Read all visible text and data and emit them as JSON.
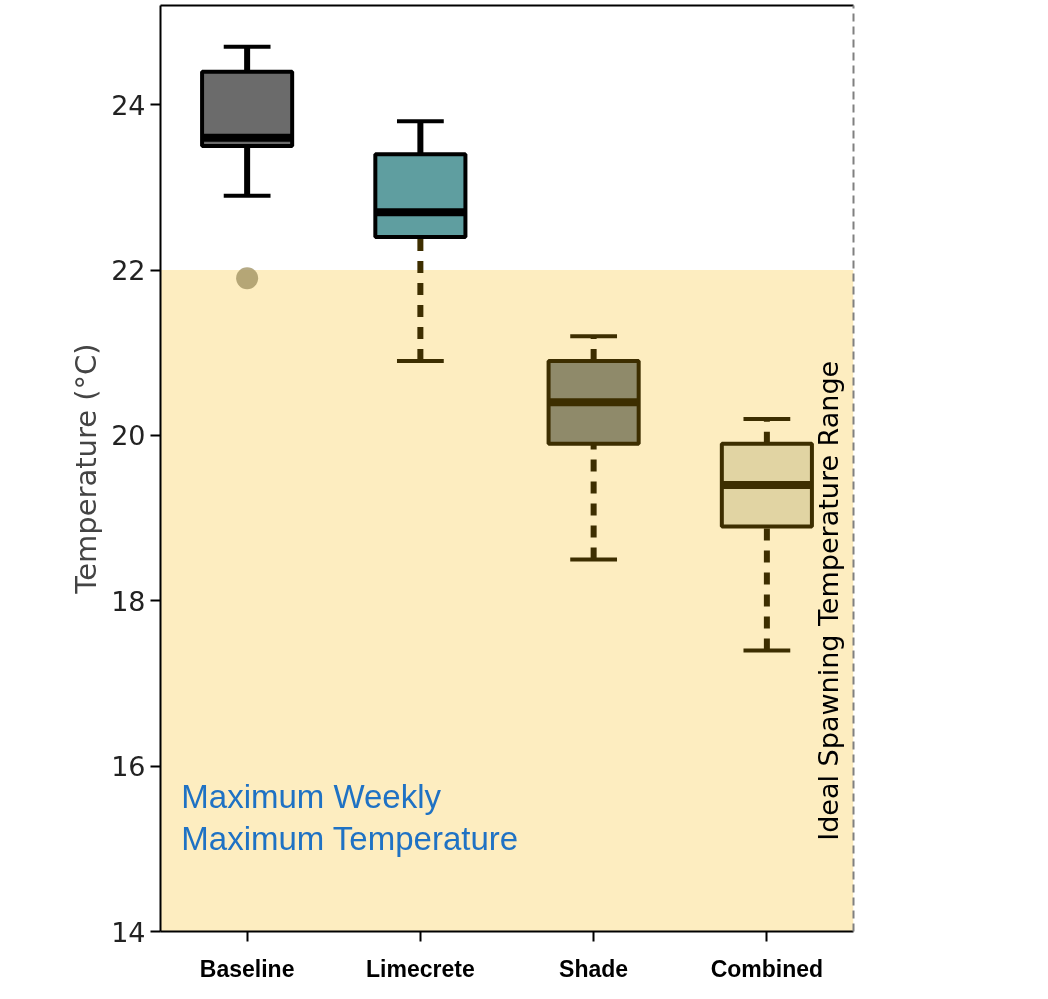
{
  "chart_data": {
    "type": "box",
    "ylabel": "Temperature (°C)",
    "categories": [
      "Baseline",
      "Limecrete",
      "Shade",
      "Combined"
    ],
    "colors": [
      "#6b6b6b",
      "#5f9ea0",
      "#8f8a6a",
      "#e1d4a3"
    ],
    "boxes": [
      {
        "low": 22.9,
        "q1": 23.5,
        "median": 23.6,
        "q3": 24.4,
        "high": 24.7,
        "outliers": [
          21.9
        ]
      },
      {
        "low": 20.9,
        "q1": 22.4,
        "median": 22.7,
        "q3": 23.4,
        "high": 23.8
      },
      {
        "low": 18.5,
        "q1": 19.9,
        "median": 20.4,
        "q3": 20.9,
        "high": 21.2
      },
      {
        "low": 17.4,
        "q1": 18.9,
        "median": 19.4,
        "q3": 19.9,
        "high": 20.2
      }
    ],
    "ylim": [
      14,
      25.2
    ],
    "yticks": [
      14,
      16,
      18,
      20,
      22,
      24
    ],
    "bands": [
      {
        "axis": "y",
        "from": 14,
        "to": 22,
        "label": "Ideal Spawning Temperature Range",
        "color": "#fdedc0"
      }
    ],
    "annotations": [
      "Maximum Weekly\nMaximum Temperature"
    ]
  }
}
